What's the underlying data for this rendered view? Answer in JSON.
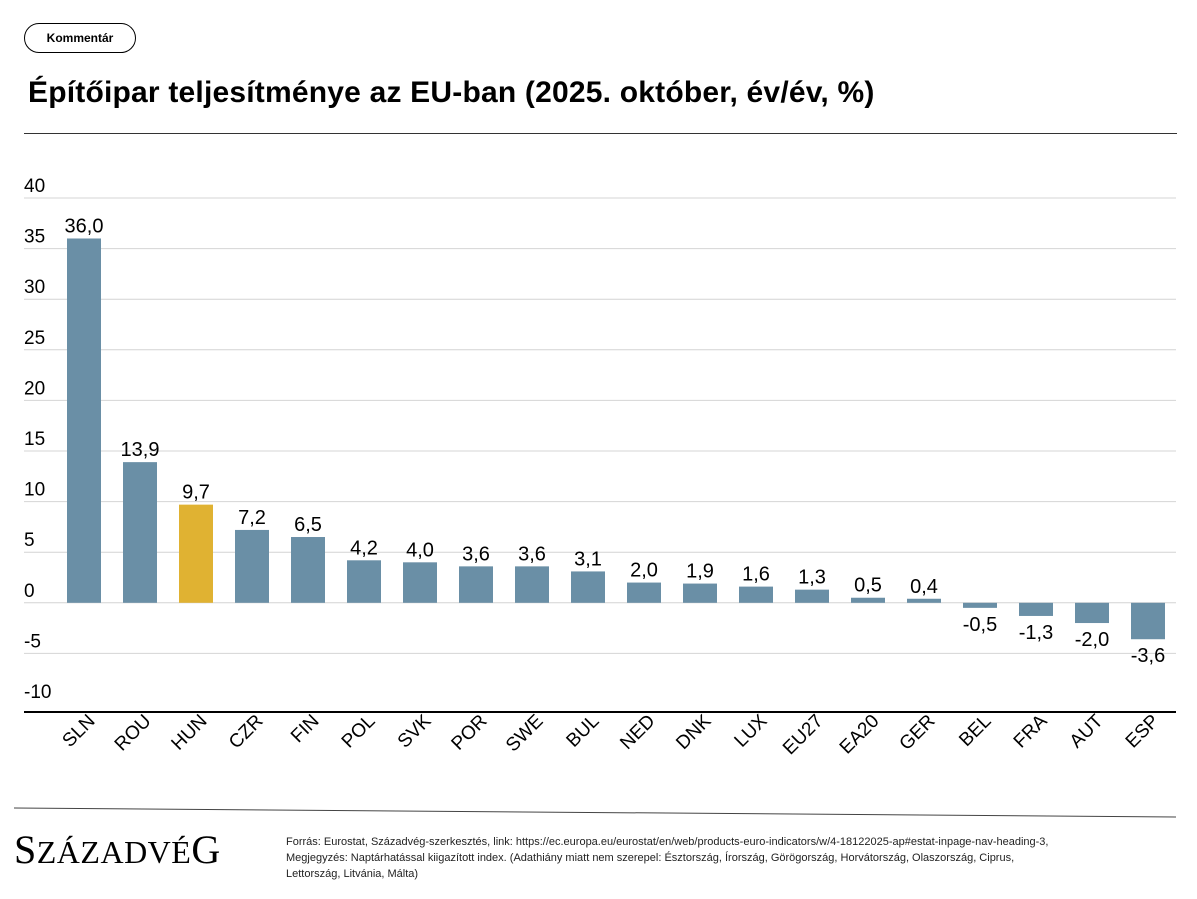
{
  "header": {
    "tag_label": "Kommentár",
    "title": "Építőipar teljesítménye az EU-ban (2025. október, év/év, %)"
  },
  "colors": {
    "bar": "#6A8FA6",
    "highlight": "#E0B232",
    "grid": "#d4d4d4",
    "axis": "#000000"
  },
  "chart_data": {
    "type": "bar",
    "title": "Építőipar teljesítménye az EU-ban (2025. október, év/év, %)",
    "categories": [
      "SLN",
      "ROU",
      "HUN",
      "CZR",
      "FIN",
      "POL",
      "SVK",
      "POR",
      "SWE",
      "BUL",
      "NED",
      "DNK",
      "LUX",
      "EU27",
      "EA20",
      "GER",
      "BEL",
      "FRA",
      "AUT",
      "ESP"
    ],
    "values": [
      36.0,
      13.9,
      9.7,
      7.2,
      6.5,
      4.2,
      4.0,
      3.6,
      3.6,
      3.1,
      2.0,
      1.9,
      1.6,
      1.3,
      0.5,
      0.4,
      -0.5,
      -1.3,
      -2.0,
      -3.6
    ],
    "value_labels": [
      "36,0",
      "13,9",
      "9,7",
      "7,2",
      "6,5",
      "4,2",
      "4,0",
      "3,6",
      "3,6",
      "3,1",
      "2,0",
      "1,9",
      "1,6",
      "1,3",
      "0,5",
      "0,4",
      "-0,5",
      "-1,3",
      "-2,0",
      "-3,6"
    ],
    "highlight": "HUN",
    "ylim": [
      -10,
      40
    ],
    "yticks": [
      40,
      35,
      30,
      25,
      20,
      15,
      10,
      5,
      0,
      -5,
      -10
    ],
    "grid": true,
    "legend": "none",
    "xlabel": "",
    "ylabel": ""
  },
  "footer": {
    "brand": "SZÁZADVÉG",
    "source_lines": [
      "Forrás: Eurostat, Századvég-szerkesztés,  link: https://ec.europa.eu/eurostat/en/web/products-euro-indicators/w/4-18122025-ap#estat-inpage-nav-heading-3,",
      "Megjegyzés: Naptárhatással kiigazított index. (Adathiány miatt nem szerepel: Észtország, Írország, Görögország, Horvátország, Olaszország, Ciprus,",
      "Lettország, Litvánia, Málta)"
    ]
  }
}
